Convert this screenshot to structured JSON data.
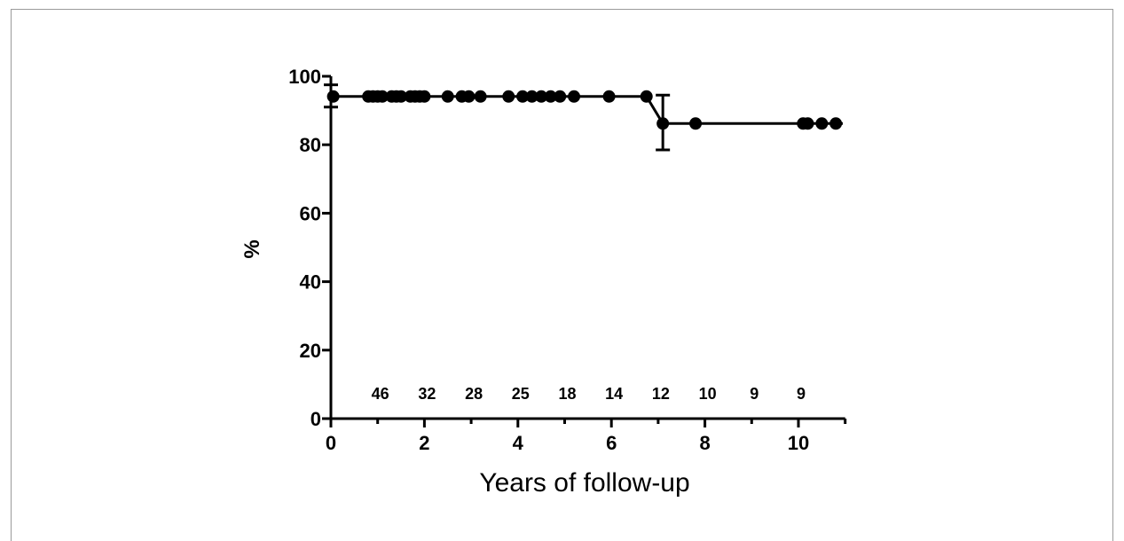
{
  "chart_data": {
    "type": "line",
    "title": "",
    "xlabel": "Years of follow-up",
    "ylabel": "%",
    "xlim": [
      0,
      11
    ],
    "ylim": [
      0,
      100
    ],
    "x_ticks": [
      0,
      2,
      4,
      6,
      8,
      10
    ],
    "y_ticks": [
      0,
      20,
      40,
      60,
      80,
      100
    ],
    "grid": false,
    "series": [
      {
        "step_points": [
          {
            "x": 0,
            "y": 94.1
          },
          {
            "x": 6.75,
            "y": 94.1
          },
          {
            "x": 7.1,
            "y": 86.2
          },
          {
            "x": 10.95,
            "y": 86.2
          }
        ],
        "markers": [
          {
            "x": 0.05,
            "y": 94.1
          },
          {
            "x": 0.8,
            "y": 94.1
          },
          {
            "x": 0.9,
            "y": 94.1
          },
          {
            "x": 1.0,
            "y": 94.1
          },
          {
            "x": 1.1,
            "y": 94.1
          },
          {
            "x": 1.3,
            "y": 94.1
          },
          {
            "x": 1.4,
            "y": 94.1
          },
          {
            "x": 1.5,
            "y": 94.1
          },
          {
            "x": 1.7,
            "y": 94.1
          },
          {
            "x": 1.8,
            "y": 94.1
          },
          {
            "x": 1.9,
            "y": 94.1
          },
          {
            "x": 2.0,
            "y": 94.1
          },
          {
            "x": 2.5,
            "y": 94.1
          },
          {
            "x": 2.8,
            "y": 94.1
          },
          {
            "x": 2.95,
            "y": 94.1
          },
          {
            "x": 3.2,
            "y": 94.1
          },
          {
            "x": 3.8,
            "y": 94.1
          },
          {
            "x": 4.1,
            "y": 94.1
          },
          {
            "x": 4.3,
            "y": 94.1
          },
          {
            "x": 4.5,
            "y": 94.1
          },
          {
            "x": 4.7,
            "y": 94.1
          },
          {
            "x": 4.9,
            "y": 94.1
          },
          {
            "x": 5.2,
            "y": 94.1
          },
          {
            "x": 5.95,
            "y": 94.1
          },
          {
            "x": 6.75,
            "y": 94.1
          },
          {
            "x": 7.1,
            "y": 86.2
          },
          {
            "x": 7.8,
            "y": 86.2
          },
          {
            "x": 10.1,
            "y": 86.2
          },
          {
            "x": 10.2,
            "y": 86.2
          },
          {
            "x": 10.5,
            "y": 86.2
          },
          {
            "x": 10.8,
            "y": 86.2
          }
        ],
        "error_bars": [
          {
            "x": 0,
            "y": 94.1,
            "low": 91,
            "high": 97.5
          },
          {
            "x": 7.1,
            "y": 86.2,
            "low": 78.5,
            "high": 94.5
          }
        ]
      }
    ],
    "at_risk": [
      {
        "x": 1.0,
        "label": "46"
      },
      {
        "x": 2.0,
        "label": "32"
      },
      {
        "x": 3.0,
        "label": "28"
      },
      {
        "x": 4.0,
        "label": "25"
      },
      {
        "x": 5.0,
        "label": "18"
      },
      {
        "x": 6.0,
        "label": "14"
      },
      {
        "x": 7.0,
        "label": "12"
      },
      {
        "x": 8.0,
        "label": "10"
      },
      {
        "x": 9.0,
        "label": "9"
      },
      {
        "x": 10.0,
        "label": "9"
      }
    ]
  }
}
